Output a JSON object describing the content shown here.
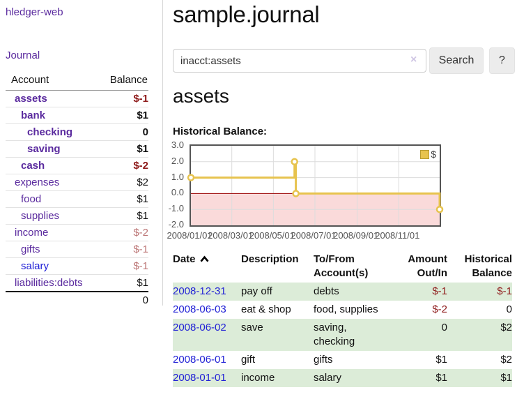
{
  "sidebar": {
    "app_title": "hledger-web",
    "journal_link": "Journal",
    "accounts_table": {
      "headers": {
        "account": "Account",
        "balance": "Balance"
      },
      "rows": [
        {
          "label": "assets",
          "depth": 1,
          "emphasis": "bold",
          "link_style": "purple",
          "balance": "$-1",
          "balance_style": "neg-strong"
        },
        {
          "label": "bank",
          "depth": 2,
          "emphasis": "bold",
          "link_style": "purple",
          "balance": "$1",
          "balance_style": "normal"
        },
        {
          "label": "checking",
          "depth": 3,
          "emphasis": "bold",
          "link_style": "purple",
          "balance": "0",
          "balance_style": "normal"
        },
        {
          "label": "saving",
          "depth": 3,
          "emphasis": "bold",
          "link_style": "purple",
          "balance": "$1",
          "balance_style": "normal"
        },
        {
          "label": "cash",
          "depth": 2,
          "emphasis": "bold",
          "link_style": "purple",
          "balance": "$-2",
          "balance_style": "neg-strong"
        },
        {
          "label": "expenses",
          "depth": 1,
          "emphasis": "normal",
          "link_style": "purple",
          "balance": "$2",
          "balance_style": "normal"
        },
        {
          "label": "food",
          "depth": 2,
          "emphasis": "normal",
          "link_style": "purple",
          "balance": "$1",
          "balance_style": "normal"
        },
        {
          "label": "supplies",
          "depth": 2,
          "emphasis": "normal",
          "link_style": "purple",
          "balance": "$1",
          "balance_style": "normal"
        },
        {
          "label": "income",
          "depth": 1,
          "emphasis": "normal",
          "link_style": "purple",
          "balance": "$-2",
          "balance_style": "neg-soft"
        },
        {
          "label": "gifts",
          "depth": 2,
          "emphasis": "normal",
          "link_style": "purple",
          "balance": "$-1",
          "balance_style": "neg-soft"
        },
        {
          "label": "salary",
          "depth": 2,
          "emphasis": "normal",
          "link_style": "blue",
          "balance": "$-1",
          "balance_style": "neg-soft"
        },
        {
          "label": "liabilities:debts",
          "depth": 1,
          "emphasis": "normal",
          "link_style": "purple",
          "balance": "$1",
          "balance_style": "normal"
        }
      ],
      "total": "0"
    }
  },
  "main": {
    "title": "sample.journal",
    "search": {
      "value": "inacct:assets",
      "clear_icon": "×",
      "button_label": "Search",
      "help_label": "?"
    },
    "account_heading": "assets",
    "chart_title": "Historical Balance:",
    "register": {
      "headers": {
        "date": "Date",
        "description": "Description",
        "accounts": "To/From Account(s)",
        "amount": "Amount Out/In",
        "balance": "Historical Balance"
      },
      "rows": [
        {
          "date": "2008-12-31",
          "description": "pay off",
          "accounts": "debts",
          "amount": "$-1",
          "amount_style": "neg",
          "balance": "$-1",
          "balance_style": "neg"
        },
        {
          "date": "2008-06-03",
          "description": "eat & shop",
          "accounts": "food, supplies",
          "amount": "$-2",
          "amount_style": "neg",
          "balance": "0",
          "balance_style": "normal"
        },
        {
          "date": "2008-06-02",
          "description": "save",
          "accounts": "saving, checking",
          "amount": "0",
          "amount_style": "normal",
          "balance": "$2",
          "balance_style": "normal"
        },
        {
          "date": "2008-06-01",
          "description": "gift",
          "accounts": "gifts",
          "amount": "$1",
          "amount_style": "normal",
          "balance": "$2",
          "balance_style": "normal"
        },
        {
          "date": "2008-01-01",
          "description": "income",
          "accounts": "salary",
          "amount": "$1",
          "amount_style": "normal",
          "balance": "$1",
          "balance_style": "normal"
        }
      ]
    }
  },
  "chart_data": {
    "type": "line",
    "style": "steps",
    "title": "Historical Balance:",
    "xlabel": "",
    "ylabel": "",
    "series": [
      {
        "name": "$",
        "color": "#e7c34e",
        "points": [
          [
            "2008-01-01",
            1
          ],
          [
            "2008-06-01",
            2
          ],
          [
            "2008-06-03",
            0
          ],
          [
            "2008-12-31",
            -1
          ]
        ]
      }
    ],
    "x_range": [
      "2008-01-01",
      "2008-12-31"
    ],
    "ylim": [
      -2,
      3
    ],
    "yticks": [
      {
        "label": "3.0",
        "value": 3
      },
      {
        "label": "2.0",
        "value": 2
      },
      {
        "label": "1.0",
        "value": 1
      },
      {
        "label": "0.0",
        "value": 0
      },
      {
        "label": "-1.0",
        "value": -1
      },
      {
        "label": "-2.0",
        "value": -2
      }
    ],
    "xticks": [
      {
        "label": "2008/01/01",
        "date": "2008-01-01"
      },
      {
        "label": "2008/03/01",
        "date": "2008-03-01"
      },
      {
        "label": "2008/05/01",
        "date": "2008-05-01"
      },
      {
        "label": "2008/07/01",
        "date": "2008-07-01"
      },
      {
        "label": "2008/09/01",
        "date": "2008-09-01"
      },
      {
        "label": "2008/11/01",
        "date": "2008-11-01"
      }
    ],
    "legend": {
      "label": "$",
      "position": "top-right"
    },
    "grid": true,
    "grid_color": "#dcdcdc",
    "negative_zone_fill": "#fadada",
    "zero_line_color": "#990000"
  },
  "colors": {
    "link_purple": "#5a2a9e",
    "link_blue": "#2121d6",
    "negative_strong": "#8e1a1a",
    "negative_soft": "#bc7676",
    "row_stripe_green": "#dcecd8",
    "chart_line_gold": "#e7c34e",
    "chart_border": "#545454",
    "button_gray": "#ececec"
  }
}
